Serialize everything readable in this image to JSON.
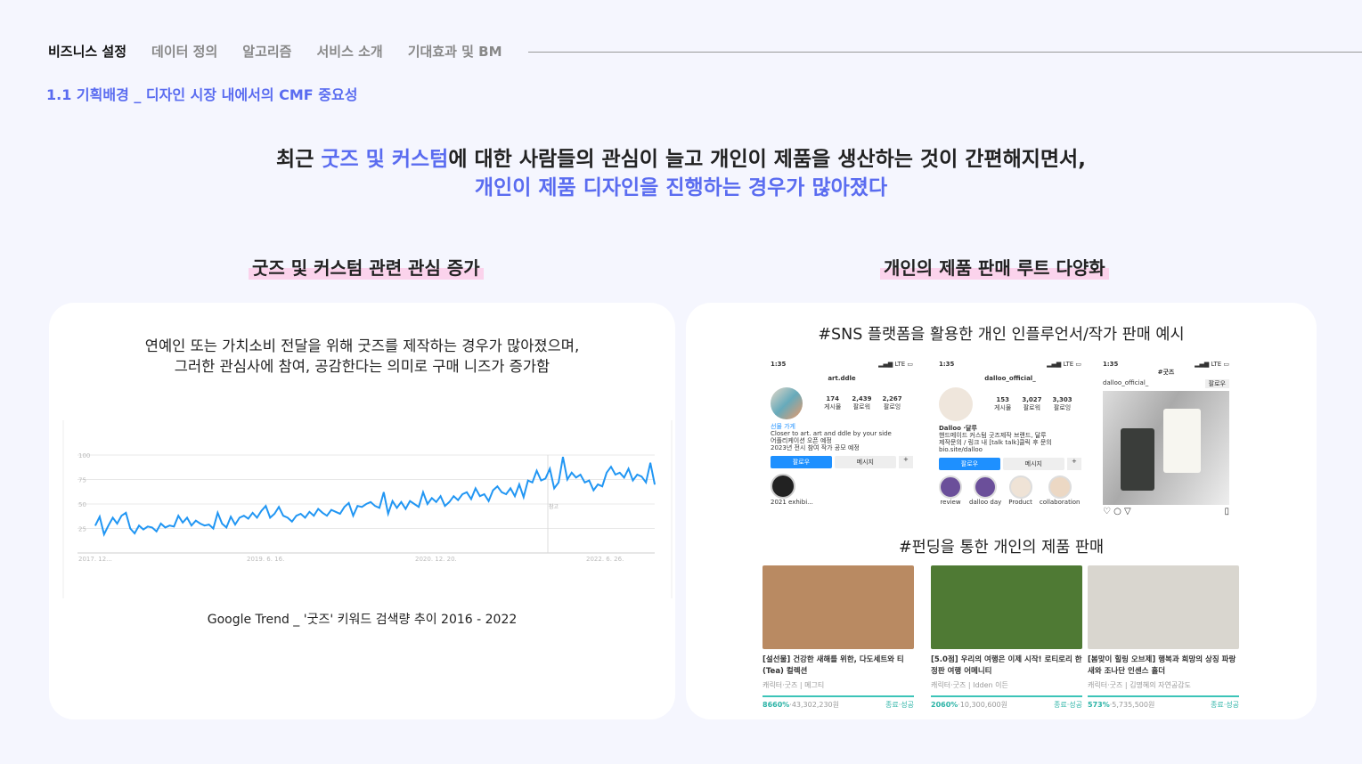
{
  "nav": {
    "items": [
      "비즈니스 설정",
      "데이터 정의",
      "알고리즘",
      "서비스 소개",
      "기대효과 및 BM"
    ],
    "active": 0
  },
  "subtitle": "1.1 기획배경 _ 디자인 시장 내에서의 CMF 중요성",
  "headline": {
    "p1": "최근 ",
    "h1": "굿즈 및 커스텀",
    "p2": "에 대한 사람들의 관심이 늘고 개인이 제품을 생산하는 것이 간편해지면서,",
    "line2": "개인이 제품 디자인을 진행하는 경우가 많아졌다"
  },
  "left": {
    "section": "굿즈 및 커스텀 관련 관심 증가",
    "desc1": "연예인 또는 가치소비 전달을 위해 굿즈를 제작하는 경우가 많아졌으며,",
    "desc2": "그러한 관심사에 참여, 공감한다는 의미로 구매 니즈가 증가함",
    "caption": "Google Trend _ '굿즈' 키워드 검색량 추이 2016 - 2022"
  },
  "chart_data": {
    "type": "line",
    "yticks": [
      "100",
      "75",
      "50",
      "25"
    ],
    "ylim": [
      0,
      100
    ],
    "xticks": [
      "2017. 12...",
      "2019. 6. 16.",
      "2020. 12. 20.",
      "2022. 6. 26."
    ],
    "annotation": "참고",
    "color": "#2196f3",
    "values": [
      28,
      37,
      19,
      28,
      36,
      30,
      38,
      41,
      25,
      20,
      28,
      24,
      27,
      26,
      22,
      30,
      26,
      28,
      27,
      38,
      31,
      36,
      28,
      33,
      30,
      28,
      29,
      25,
      41,
      30,
      26,
      37,
      29,
      36,
      38,
      35,
      41,
      36,
      43,
      48,
      36,
      40,
      47,
      38,
      36,
      32,
      38,
      40,
      36,
      42,
      38,
      45,
      41,
      38,
      44,
      42,
      40,
      47,
      51,
      38,
      48,
      47,
      50,
      52,
      48,
      46,
      62,
      40,
      53,
      46,
      52,
      45,
      53,
      50,
      47,
      62,
      50,
      56,
      52,
      58,
      48,
      52,
      58,
      54,
      60,
      62,
      55,
      66,
      58,
      60,
      53,
      64,
      68,
      62,
      60,
      66,
      58,
      70,
      57,
      74,
      72,
      84,
      74,
      76,
      86,
      66,
      72,
      98,
      75,
      82,
      77,
      80,
      72,
      74,
      64,
      70,
      68,
      82,
      88,
      80,
      82,
      77,
      86,
      74,
      80,
      78,
      72,
      92,
      70
    ]
  },
  "right": {
    "section": "개인의 제품 판매 루트 다양화",
    "sns_title": "#SNS 플랫폼을 활용한 개인 인플루언서/작가 판매 예시",
    "funding_title": "#펀딩을 통한 개인의 제품 판매",
    "phones": [
      {
        "time": "1:35",
        "name": "art.ddle",
        "stats": [
          [
            "174",
            "게시물"
          ],
          [
            "2,439",
            "팔로워"
          ],
          [
            "2,267",
            "팔로잉"
          ]
        ],
        "bio": [
          "선물 가게",
          "Closer to art. art and ddle by your side",
          "어플리케이션 오픈 예정",
          "2023년 전시 참여 작가 공모 예정"
        ],
        "follow": "팔로우",
        "message": "메시지",
        "highlights": [
          "2021 exhibi..."
        ]
      },
      {
        "time": "1:35",
        "name": "dalloo_official_",
        "stats": [
          [
            "153",
            "게시물"
          ],
          [
            "3,027",
            "팔로워"
          ],
          [
            "3,303",
            "팔로잉"
          ]
        ],
        "bio": [
          "Dalloo ·달루",
          "핸드메이드 커스텀 굿즈제작 브랜드, 달루",
          "제작문의 / 링크 내 [talk talk]클릭 후 문의",
          "bio.site/dalloo"
        ],
        "follow": "팔로우",
        "message": "메시지",
        "highlights": [
          "review",
          "dalloo day",
          "Product",
          "collaboration"
        ]
      },
      {
        "time": "1:35",
        "header": "#굿즈",
        "user": "dalloo_official_",
        "follow": "팔로우"
      }
    ],
    "fundings": [
      {
        "title": "[설선물] 건강한 새해를 위한, 다도세트와 티(Tea) 컬렉션",
        "meta": "캐릭터·굿즈 | 메그티",
        "percent": "8660%",
        "amount": "43,302,230원",
        "status": "종료·성공",
        "img": "#b98a62"
      },
      {
        "title": "[5.0점] 우리의 여행은 이제 시작! 로티로리 한정판 여행 어메니티",
        "meta": "캐릭터·굿즈 | Idden 이든",
        "percent": "2060%",
        "amount": "10,300,600원",
        "status": "종료·성공",
        "img": "#4f7a34"
      },
      {
        "title": "[봄맞이 힐링 오브제] 행복과 희망의 상징 파랑새와 조나단 인센스 홀더",
        "meta": "캐릭터·굿즈 | 김명혜의 자연공감도",
        "percent": "573%",
        "amount": "5,735,500원",
        "status": "종료·성공",
        "img": "#d9d6cf"
      }
    ]
  }
}
